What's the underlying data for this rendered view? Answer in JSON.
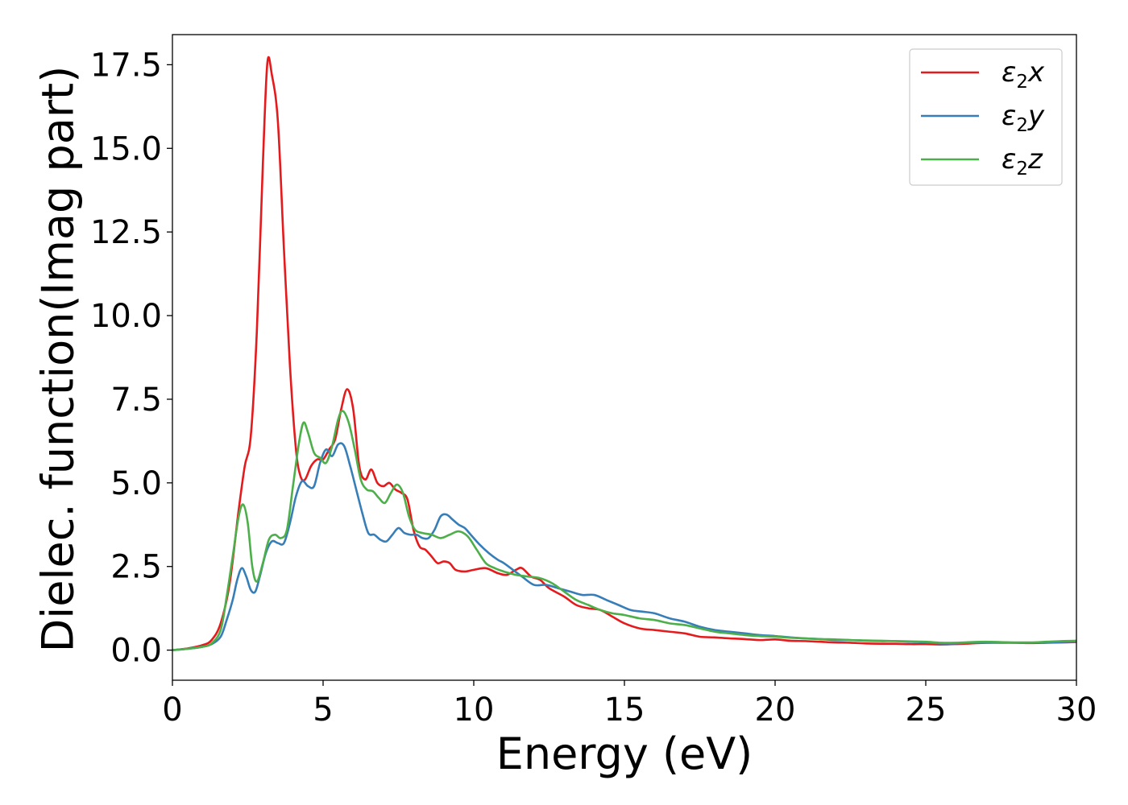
{
  "chart_data": {
    "type": "line",
    "xlabel": "Energy (eV)",
    "ylabel": "Dielec. function(Imag part)",
    "xlim": [
      0,
      30
    ],
    "ylim": [
      -0.9,
      18.4
    ],
    "xticks": [
      0,
      5,
      10,
      15,
      20,
      25,
      30
    ],
    "xtick_labels": [
      "0",
      "5",
      "10",
      "15",
      "20",
      "25",
      "30"
    ],
    "yticks": [
      0.0,
      2.5,
      5.0,
      7.5,
      10.0,
      12.5,
      15.0,
      17.5
    ],
    "ytick_labels": [
      "0.0",
      "2.5",
      "5.0",
      "7.5",
      "10.0",
      "12.5",
      "15.0",
      "17.5"
    ],
    "grid": false,
    "legend_position": "top-right",
    "series": [
      {
        "name": "ε2x",
        "legend_base": "ε",
        "legend_sub": "2",
        "legend_var": "x",
        "color": "#e41a1c",
        "points": [
          [
            0,
            0.0
          ],
          [
            0.5,
            0.05
          ],
          [
            1.0,
            0.15
          ],
          [
            1.3,
            0.3
          ],
          [
            1.6,
            0.8
          ],
          [
            1.9,
            2.0
          ],
          [
            2.2,
            4.2
          ],
          [
            2.4,
            5.5
          ],
          [
            2.6,
            6.4
          ],
          [
            2.8,
            9.5
          ],
          [
            3.0,
            14.5
          ],
          [
            3.15,
            17.55
          ],
          [
            3.3,
            17.2
          ],
          [
            3.5,
            15.8
          ],
          [
            3.7,
            12.0
          ],
          [
            3.9,
            8.5
          ],
          [
            4.1,
            6.0
          ],
          [
            4.25,
            5.2
          ],
          [
            4.4,
            5.1
          ],
          [
            4.6,
            5.5
          ],
          [
            4.8,
            5.7
          ],
          [
            5.0,
            5.7
          ],
          [
            5.2,
            6.0
          ],
          [
            5.4,
            6.3
          ],
          [
            5.6,
            7.2
          ],
          [
            5.8,
            7.8
          ],
          [
            6.0,
            7.2
          ],
          [
            6.2,
            5.5
          ],
          [
            6.4,
            5.1
          ],
          [
            6.6,
            5.4
          ],
          [
            6.8,
            5.0
          ],
          [
            7.0,
            4.9
          ],
          [
            7.2,
            5.0
          ],
          [
            7.4,
            4.8
          ],
          [
            7.6,
            4.7
          ],
          [
            7.8,
            4.5
          ],
          [
            8.0,
            3.6
          ],
          [
            8.2,
            3.1
          ],
          [
            8.4,
            3.0
          ],
          [
            8.6,
            2.8
          ],
          [
            8.8,
            2.6
          ],
          [
            9.0,
            2.65
          ],
          [
            9.2,
            2.6
          ],
          [
            9.4,
            2.4
          ],
          [
            9.7,
            2.35
          ],
          [
            10.0,
            2.4
          ],
          [
            10.4,
            2.45
          ],
          [
            10.8,
            2.3
          ],
          [
            11.1,
            2.25
          ],
          [
            11.4,
            2.4
          ],
          [
            11.6,
            2.45
          ],
          [
            11.9,
            2.2
          ],
          [
            12.2,
            2.1
          ],
          [
            12.5,
            1.85
          ],
          [
            13.0,
            1.6
          ],
          [
            13.4,
            1.35
          ],
          [
            13.8,
            1.25
          ],
          [
            14.2,
            1.2
          ],
          [
            14.6,
            1.0
          ],
          [
            15.0,
            0.8
          ],
          [
            15.5,
            0.65
          ],
          [
            16.0,
            0.6
          ],
          [
            16.5,
            0.55
          ],
          [
            17.0,
            0.5
          ],
          [
            17.5,
            0.4
          ],
          [
            18.0,
            0.38
          ],
          [
            18.5,
            0.35
          ],
          [
            19.0,
            0.33
          ],
          [
            19.5,
            0.3
          ],
          [
            20.0,
            0.32
          ],
          [
            20.5,
            0.28
          ],
          [
            21.0,
            0.27
          ],
          [
            21.5,
            0.25
          ],
          [
            22.0,
            0.23
          ],
          [
            22.5,
            0.22
          ],
          [
            23.0,
            0.2
          ],
          [
            23.5,
            0.19
          ],
          [
            24.0,
            0.19
          ],
          [
            24.5,
            0.18
          ],
          [
            25.0,
            0.18
          ],
          [
            25.5,
            0.17
          ],
          [
            26.0,
            0.18
          ],
          [
            26.5,
            0.2
          ],
          [
            27.0,
            0.22
          ],
          [
            27.5,
            0.22
          ],
          [
            28.0,
            0.22
          ],
          [
            28.5,
            0.21
          ],
          [
            29.0,
            0.22
          ],
          [
            29.5,
            0.23
          ],
          [
            30.0,
            0.24
          ]
        ]
      },
      {
        "name": "ε2y",
        "legend_base": "ε",
        "legend_sub": "2",
        "legend_var": "y",
        "color": "#377eb8",
        "points": [
          [
            0,
            0.0
          ],
          [
            0.5,
            0.04
          ],
          [
            1.0,
            0.1
          ],
          [
            1.3,
            0.18
          ],
          [
            1.6,
            0.4
          ],
          [
            1.8,
            0.9
          ],
          [
            2.0,
            1.5
          ],
          [
            2.15,
            2.1
          ],
          [
            2.3,
            2.45
          ],
          [
            2.45,
            2.2
          ],
          [
            2.6,
            1.8
          ],
          [
            2.75,
            1.75
          ],
          [
            2.9,
            2.2
          ],
          [
            3.1,
            2.9
          ],
          [
            3.3,
            3.25
          ],
          [
            3.5,
            3.2
          ],
          [
            3.7,
            3.2
          ],
          [
            3.9,
            3.8
          ],
          [
            4.1,
            4.6
          ],
          [
            4.3,
            5.05
          ],
          [
            4.5,
            4.9
          ],
          [
            4.7,
            4.9
          ],
          [
            4.9,
            5.6
          ],
          [
            5.1,
            6.0
          ],
          [
            5.3,
            5.8
          ],
          [
            5.5,
            6.15
          ],
          [
            5.7,
            6.1
          ],
          [
            5.9,
            5.5
          ],
          [
            6.1,
            4.8
          ],
          [
            6.3,
            4.1
          ],
          [
            6.5,
            3.5
          ],
          [
            6.7,
            3.45
          ],
          [
            6.9,
            3.3
          ],
          [
            7.1,
            3.25
          ],
          [
            7.3,
            3.45
          ],
          [
            7.5,
            3.65
          ],
          [
            7.7,
            3.5
          ],
          [
            7.9,
            3.45
          ],
          [
            8.1,
            3.45
          ],
          [
            8.3,
            3.35
          ],
          [
            8.5,
            3.35
          ],
          [
            8.7,
            3.6
          ],
          [
            8.9,
            4.0
          ],
          [
            9.1,
            4.05
          ],
          [
            9.3,
            3.9
          ],
          [
            9.5,
            3.75
          ],
          [
            9.7,
            3.65
          ],
          [
            9.9,
            3.45
          ],
          [
            10.2,
            3.15
          ],
          [
            10.5,
            2.9
          ],
          [
            10.8,
            2.7
          ],
          [
            11.0,
            2.6
          ],
          [
            11.3,
            2.4
          ],
          [
            11.6,
            2.2
          ],
          [
            12.0,
            1.95
          ],
          [
            12.4,
            1.95
          ],
          [
            12.8,
            1.85
          ],
          [
            13.2,
            1.75
          ],
          [
            13.6,
            1.65
          ],
          [
            14.0,
            1.65
          ],
          [
            14.4,
            1.5
          ],
          [
            14.8,
            1.35
          ],
          [
            15.2,
            1.2
          ],
          [
            15.6,
            1.15
          ],
          [
            16.0,
            1.1
          ],
          [
            16.5,
            0.95
          ],
          [
            17.0,
            0.85
          ],
          [
            17.5,
            0.7
          ],
          [
            18.0,
            0.6
          ],
          [
            18.5,
            0.55
          ],
          [
            19.0,
            0.5
          ],
          [
            19.5,
            0.45
          ],
          [
            20.0,
            0.42
          ],
          [
            20.5,
            0.38
          ],
          [
            21.0,
            0.35
          ],
          [
            21.5,
            0.33
          ],
          [
            22.0,
            0.3
          ],
          [
            22.5,
            0.3
          ],
          [
            23.0,
            0.28
          ],
          [
            23.5,
            0.27
          ],
          [
            24.0,
            0.27
          ],
          [
            24.5,
            0.25
          ],
          [
            25.0,
            0.23
          ],
          [
            25.5,
            0.2
          ],
          [
            26.0,
            0.2
          ],
          [
            26.5,
            0.22
          ],
          [
            27.0,
            0.22
          ],
          [
            27.5,
            0.23
          ],
          [
            28.0,
            0.22
          ],
          [
            28.5,
            0.22
          ],
          [
            29.0,
            0.23
          ],
          [
            29.5,
            0.24
          ],
          [
            30.0,
            0.25
          ]
        ]
      },
      {
        "name": "ε2z",
        "legend_base": "ε",
        "legend_sub": "2",
        "legend_var": "z",
        "color": "#4daf4a",
        "points": [
          [
            0,
            0.0
          ],
          [
            0.5,
            0.04
          ],
          [
            1.0,
            0.1
          ],
          [
            1.3,
            0.2
          ],
          [
            1.6,
            0.6
          ],
          [
            1.8,
            1.6
          ],
          [
            2.0,
            2.8
          ],
          [
            2.2,
            4.0
          ],
          [
            2.35,
            4.35
          ],
          [
            2.5,
            3.8
          ],
          [
            2.65,
            2.5
          ],
          [
            2.8,
            2.05
          ],
          [
            3.0,
            2.6
          ],
          [
            3.2,
            3.3
          ],
          [
            3.4,
            3.45
          ],
          [
            3.6,
            3.35
          ],
          [
            3.8,
            3.6
          ],
          [
            4.0,
            4.9
          ],
          [
            4.2,
            6.2
          ],
          [
            4.35,
            6.8
          ],
          [
            4.5,
            6.5
          ],
          [
            4.7,
            5.9
          ],
          [
            4.9,
            5.75
          ],
          [
            5.1,
            5.6
          ],
          [
            5.3,
            6.1
          ],
          [
            5.5,
            6.9
          ],
          [
            5.65,
            7.15
          ],
          [
            5.85,
            6.8
          ],
          [
            6.05,
            6.0
          ],
          [
            6.25,
            5.1
          ],
          [
            6.45,
            4.8
          ],
          [
            6.65,
            4.75
          ],
          [
            6.85,
            4.55
          ],
          [
            7.05,
            4.4
          ],
          [
            7.25,
            4.7
          ],
          [
            7.45,
            4.95
          ],
          [
            7.65,
            4.7
          ],
          [
            7.85,
            4.0
          ],
          [
            8.05,
            3.6
          ],
          [
            8.3,
            3.5
          ],
          [
            8.6,
            3.45
          ],
          [
            8.9,
            3.35
          ],
          [
            9.2,
            3.45
          ],
          [
            9.5,
            3.55
          ],
          [
            9.8,
            3.4
          ],
          [
            10.1,
            3.0
          ],
          [
            10.4,
            2.6
          ],
          [
            10.7,
            2.45
          ],
          [
            11.0,
            2.35
          ],
          [
            11.4,
            2.25
          ],
          [
            11.8,
            2.2
          ],
          [
            12.2,
            2.15
          ],
          [
            12.6,
            2.0
          ],
          [
            13.0,
            1.75
          ],
          [
            13.4,
            1.5
          ],
          [
            13.8,
            1.35
          ],
          [
            14.2,
            1.2
          ],
          [
            14.6,
            1.1
          ],
          [
            15.0,
            1.05
          ],
          [
            15.5,
            0.95
          ],
          [
            16.0,
            0.9
          ],
          [
            16.5,
            0.8
          ],
          [
            17.0,
            0.75
          ],
          [
            17.5,
            0.65
          ],
          [
            18.0,
            0.55
          ],
          [
            18.5,
            0.5
          ],
          [
            19.0,
            0.45
          ],
          [
            19.5,
            0.42
          ],
          [
            20.0,
            0.4
          ],
          [
            20.5,
            0.37
          ],
          [
            21.0,
            0.35
          ],
          [
            21.5,
            0.33
          ],
          [
            22.0,
            0.32
          ],
          [
            22.5,
            0.3
          ],
          [
            23.0,
            0.29
          ],
          [
            23.5,
            0.28
          ],
          [
            24.0,
            0.27
          ],
          [
            24.5,
            0.26
          ],
          [
            25.0,
            0.25
          ],
          [
            25.5,
            0.22
          ],
          [
            26.0,
            0.22
          ],
          [
            26.5,
            0.24
          ],
          [
            27.0,
            0.25
          ],
          [
            27.5,
            0.24
          ],
          [
            28.0,
            0.23
          ],
          [
            28.5,
            0.23
          ],
          [
            29.0,
            0.25
          ],
          [
            29.5,
            0.27
          ],
          [
            30.0,
            0.28
          ]
        ]
      }
    ]
  }
}
